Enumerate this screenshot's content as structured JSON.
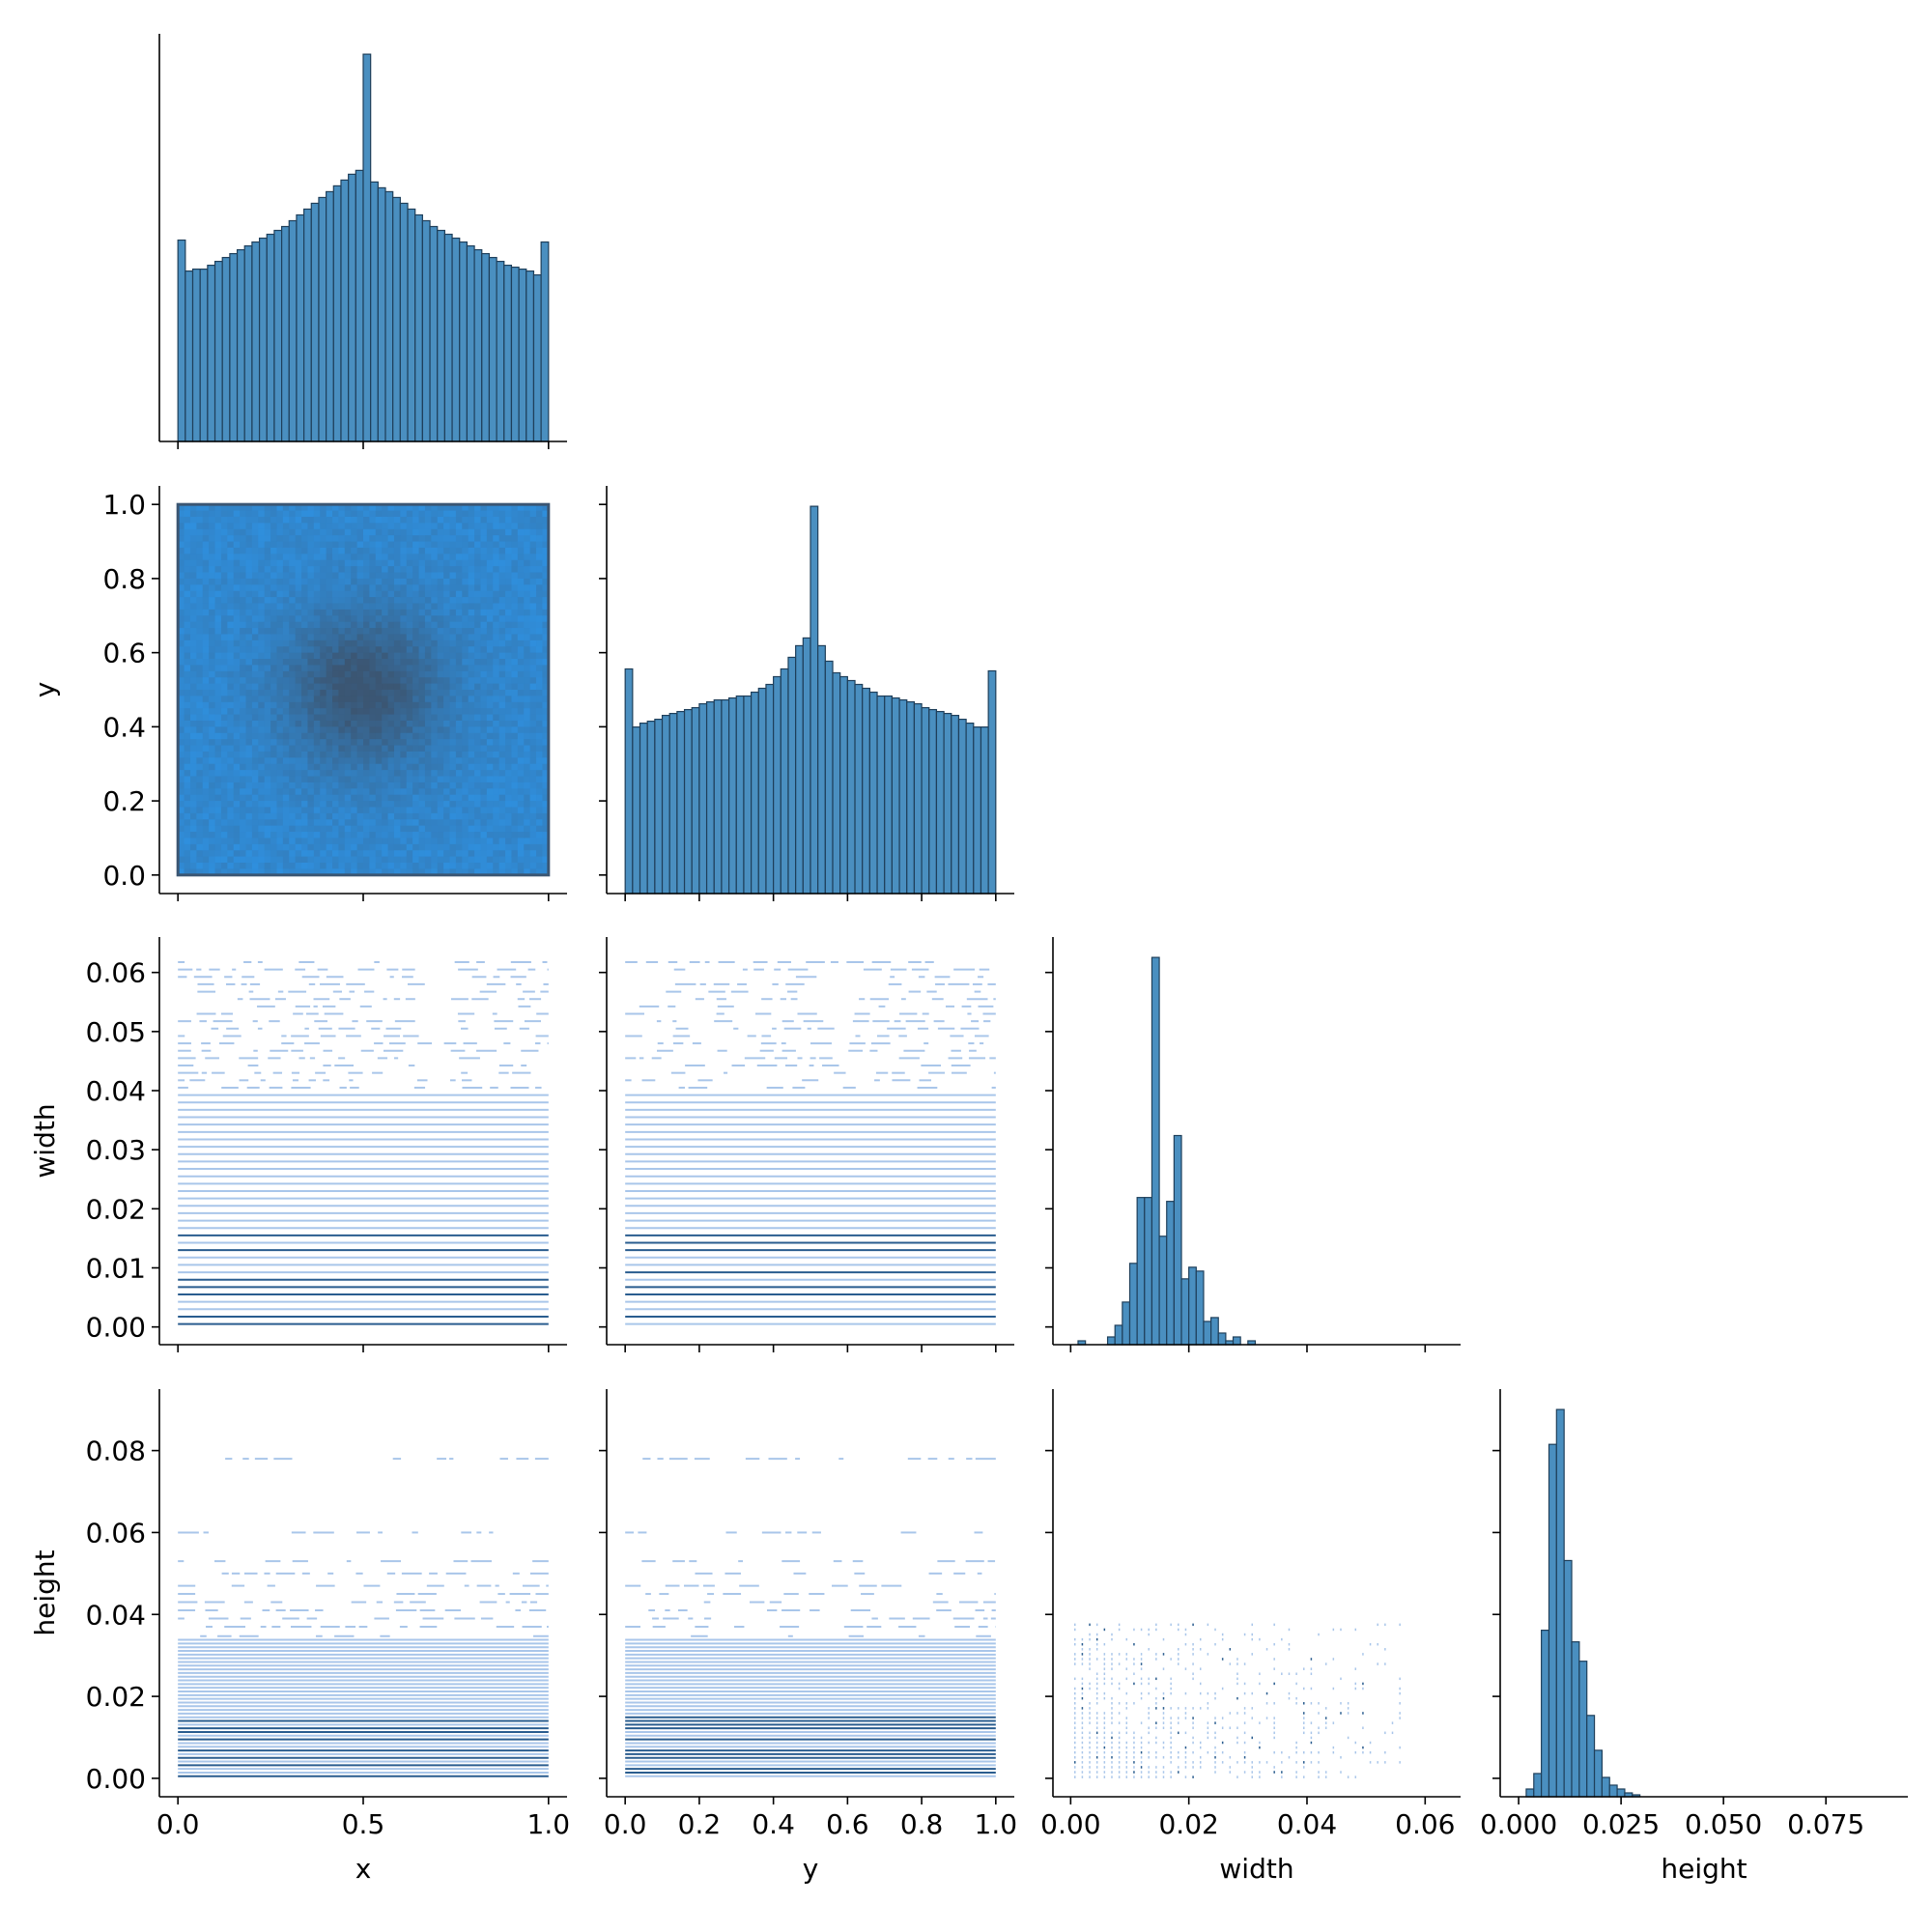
{
  "chart_data": {
    "type": "pairplot-corner",
    "variables": [
      "x",
      "y",
      "width",
      "height"
    ],
    "axis_labels": {
      "x": "x",
      "y": "y",
      "width": "width",
      "height": "height"
    },
    "colors": {
      "bar": "#4a8fc0",
      "bar_edge": "#1f3f5a",
      "scatter_light": "#a9c6ea",
      "scatter_dark": "#2a5d8f",
      "density_high": "#3b5673",
      "density_low": "#2f8fdd"
    },
    "axes": {
      "x": {
        "range": [
          -0.05,
          1.05
        ],
        "ticks": [
          0.0,
          0.5,
          1.0
        ],
        "tick_labels": [
          "0.0",
          "0.5",
          "1.0"
        ]
      },
      "y": {
        "range": [
          -0.05,
          1.05
        ],
        "ticks": [
          0.0,
          0.2,
          0.4,
          0.6,
          0.8,
          1.0
        ],
        "tick_labels": [
          "0.0",
          "0.2",
          "0.4",
          "0.6",
          "0.8",
          "1.0"
        ]
      },
      "width": {
        "range": [
          -0.003,
          0.066
        ],
        "ticks": [
          0.0,
          0.01,
          0.02,
          0.03,
          0.04,
          0.05,
          0.06
        ],
        "tick_labels": [
          "0.00",
          "0.01",
          "0.02",
          "0.03",
          "0.04",
          "0.05",
          "0.06"
        ],
        "bottom_ticks": [
          0.0,
          0.02,
          0.04,
          0.06
        ],
        "bottom_tick_labels": [
          "0.00",
          "0.02",
          "0.04",
          "0.06"
        ]
      },
      "height": {
        "range": [
          -0.0045,
          0.095
        ],
        "ticks": [
          0.0,
          0.02,
          0.04,
          0.06,
          0.08
        ],
        "tick_labels": [
          "0.00",
          "0.02",
          "0.04",
          "0.06",
          "0.08"
        ],
        "bottom_ticks": [
          0.0,
          0.025,
          0.05,
          0.075
        ],
        "bottom_tick_labels": [
          "0.000",
          "0.025",
          "0.050",
          "0.075"
        ]
      }
    },
    "histograms": {
      "x": {
        "bin_start": 0.0,
        "bin_width": 0.02,
        "counts": [
          0.52,
          0.44,
          0.445,
          0.445,
          0.455,
          0.465,
          0.475,
          0.485,
          0.495,
          0.505,
          0.515,
          0.525,
          0.535,
          0.545,
          0.555,
          0.57,
          0.585,
          0.6,
          0.615,
          0.63,
          0.645,
          0.66,
          0.675,
          0.69,
          0.7,
          1.0,
          0.67,
          0.655,
          0.645,
          0.63,
          0.615,
          0.6,
          0.585,
          0.57,
          0.555,
          0.545,
          0.535,
          0.525,
          0.515,
          0.505,
          0.495,
          0.485,
          0.475,
          0.465,
          0.455,
          0.45,
          0.445,
          0.44,
          0.43,
          0.515
        ]
      },
      "y": {
        "bin_start": 0.0,
        "bin_width": 0.02,
        "counts": [
          0.58,
          0.43,
          0.44,
          0.445,
          0.45,
          0.46,
          0.465,
          0.47,
          0.475,
          0.48,
          0.49,
          0.495,
          0.5,
          0.5,
          0.505,
          0.51,
          0.51,
          0.52,
          0.53,
          0.54,
          0.56,
          0.58,
          0.61,
          0.64,
          0.66,
          1.0,
          0.64,
          0.6,
          0.57,
          0.56,
          0.55,
          0.54,
          0.53,
          0.52,
          0.51,
          0.51,
          0.505,
          0.5,
          0.495,
          0.49,
          0.48,
          0.475,
          0.47,
          0.465,
          0.46,
          0.45,
          0.44,
          0.43,
          0.43,
          0.575
        ]
      },
      "width": {
        "bin_start": 0.0,
        "bin_width": 0.00125,
        "counts": [
          0.0,
          0.01,
          0.0,
          0.0,
          0.0,
          0.02,
          0.05,
          0.11,
          0.21,
          0.38,
          0.38,
          1.0,
          0.28,
          0.37,
          0.54,
          0.17,
          0.2,
          0.19,
          0.06,
          0.07,
          0.03,
          0.01,
          0.02,
          0.0,
          0.01,
          0.0,
          0.0,
          0.0,
          0.0,
          0.0,
          0.0,
          0.0,
          0.0,
          0.0,
          0.0,
          0.0,
          0.0,
          0.0,
          0.0,
          0.0,
          0.0,
          0.0,
          0.0,
          0.0,
          0.0,
          0.0,
          0.0,
          0.0,
          0.0,
          0.0
        ]
      },
      "height": {
        "bin_start": 0.0,
        "bin_width": 0.00185,
        "counts": [
          0.0,
          0.02,
          0.06,
          0.43,
          0.91,
          1.0,
          0.61,
          0.4,
          0.35,
          0.21,
          0.12,
          0.05,
          0.03,
          0.02,
          0.01,
          0.005,
          0.0,
          0.0,
          0.0,
          0.0,
          0.0,
          0.0,
          0.0,
          0.0,
          0.0,
          0.0,
          0.0,
          0.0,
          0.0,
          0.0,
          0.0,
          0.0,
          0.0,
          0.0,
          0.0,
          0.0,
          0.0,
          0.0,
          0.0,
          0.0,
          0.0,
          0.0,
          0.0,
          0.0,
          0.0,
          0.0,
          0.0,
          0.0,
          0.0,
          0.0
        ]
      }
    }
  }
}
